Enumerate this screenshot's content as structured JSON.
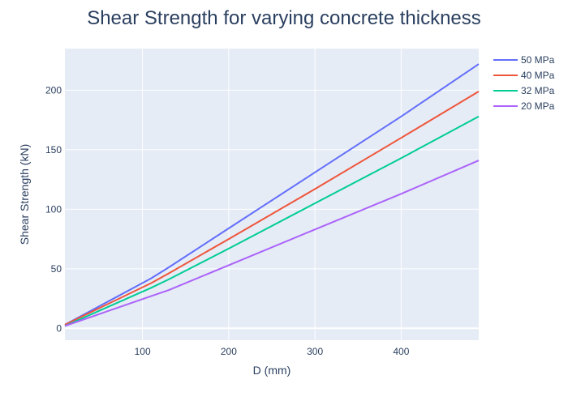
{
  "chart_data": {
    "type": "line",
    "title": "Shear Strength for varying concrete thickness",
    "xlabel": "D (mm)",
    "ylabel": "Shear Strength (kN)",
    "xlim": [
      10,
      490
    ],
    "ylim": [
      -10,
      235
    ],
    "xticks": [
      100,
      200,
      300,
      400
    ],
    "yticks": [
      0,
      50,
      100,
      150,
      200
    ],
    "grid": true,
    "legend_position": "top-right outside",
    "series": [
      {
        "name": "50 MPa",
        "color": "#636efa",
        "x": [
          10,
          110,
          130,
          200,
          300,
          400,
          490
        ],
        "y": [
          3,
          42,
          51,
          84,
          131,
          178,
          222
        ]
      },
      {
        "name": "40 MPa",
        "color": "#ef553b",
        "x": [
          10,
          110,
          130,
          200,
          300,
          400,
          490
        ],
        "y": [
          3,
          38,
          46,
          75,
          117,
          160,
          199
        ]
      },
      {
        "name": "32 MPa",
        "color": "#00cc96",
        "x": [
          10,
          110,
          130,
          200,
          300,
          400,
          490
        ],
        "y": [
          2,
          34,
          41,
          67,
          105,
          143,
          178
        ]
      },
      {
        "name": "20 MPa",
        "color": "#ab63fa",
        "x": [
          10,
          110,
          130,
          200,
          300,
          400,
          490
        ],
        "y": [
          2,
          27,
          32,
          53,
          83,
          113,
          141
        ]
      }
    ]
  }
}
